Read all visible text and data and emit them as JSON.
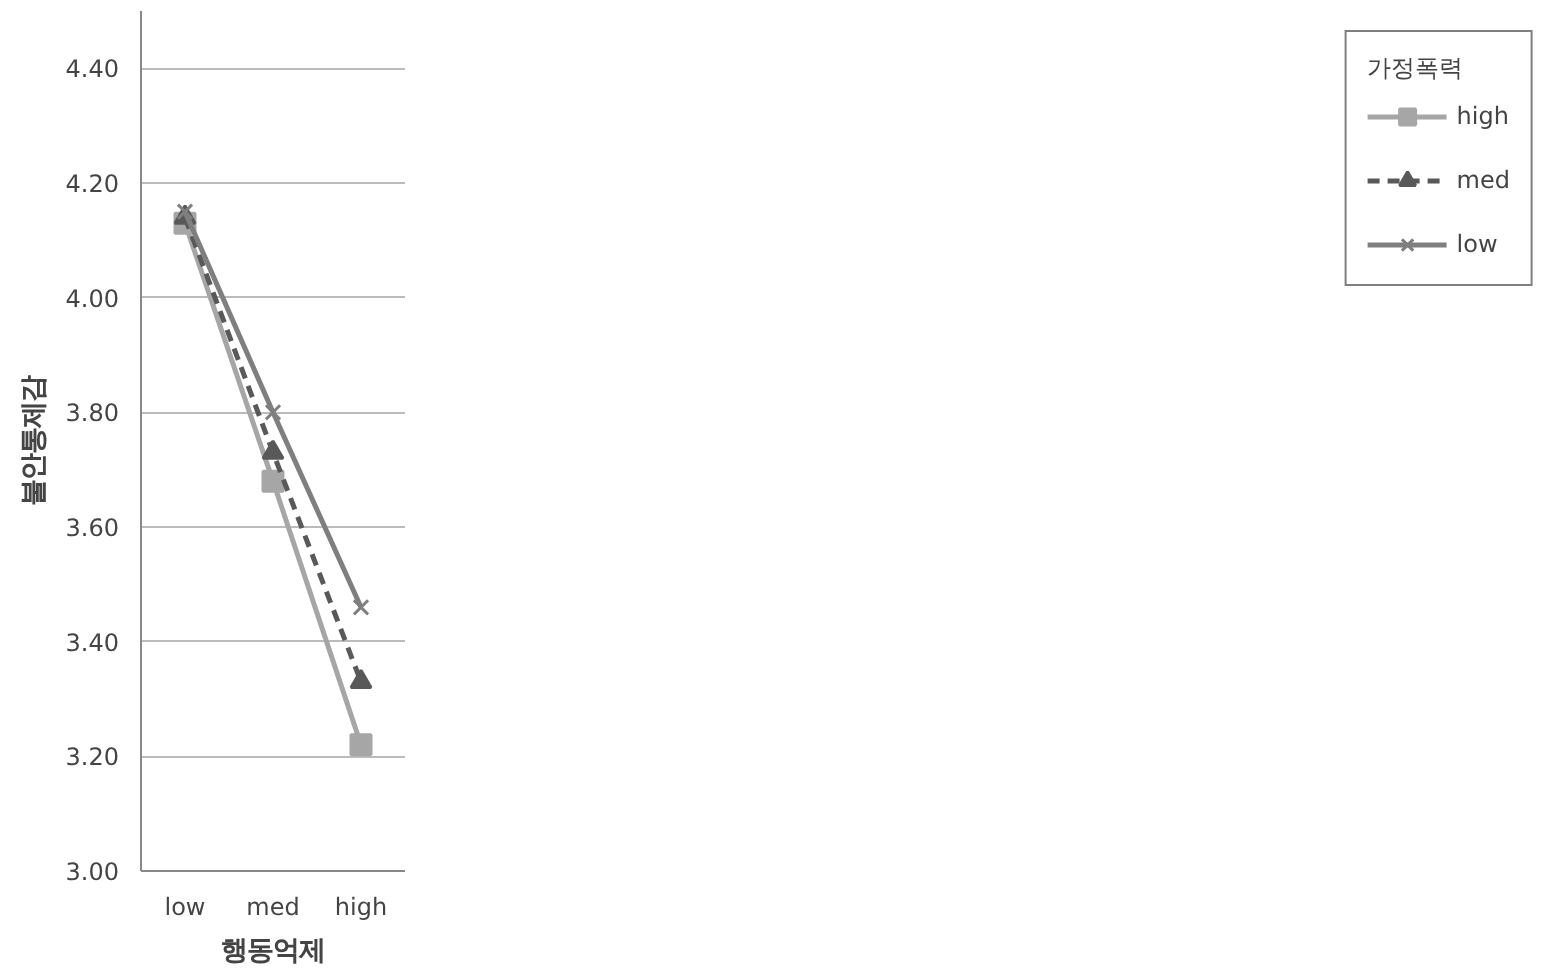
{
  "chart_data": {
    "type": "line",
    "xlabel": "행동억제",
    "ylabel": "불안통제감",
    "legend_title": "가정폭력",
    "categories": [
      "low",
      "med",
      "high"
    ],
    "ylim": [
      3.0,
      4.5
    ],
    "yticks": [
      {
        "value": 3.0,
        "label": "3.00"
      },
      {
        "value": 3.2,
        "label": "3.20"
      },
      {
        "value": 3.4,
        "label": "3.40"
      },
      {
        "value": 3.6,
        "label": "3.60"
      },
      {
        "value": 3.8,
        "label": "3.80"
      },
      {
        "value": 4.0,
        "label": "4.00"
      },
      {
        "value": 4.2,
        "label": "4.20"
      },
      {
        "value": 4.4,
        "label": "4.40"
      }
    ],
    "grid": "y",
    "legend": "right",
    "series": [
      {
        "name": "high",
        "color": "#a6a6a6",
        "marker": "square",
        "line_style": "solid",
        "values": [
          4.13,
          3.68,
          3.22
        ]
      },
      {
        "name": "med",
        "color": "#595959",
        "marker": "triangle",
        "line_style": "dashed",
        "values": [
          4.14,
          3.73,
          3.33
        ]
      },
      {
        "name": "low",
        "color": "#7f7f7f",
        "marker": "cross",
        "line_style": "solid",
        "values": [
          4.15,
          3.8,
          3.46
        ]
      }
    ]
  }
}
